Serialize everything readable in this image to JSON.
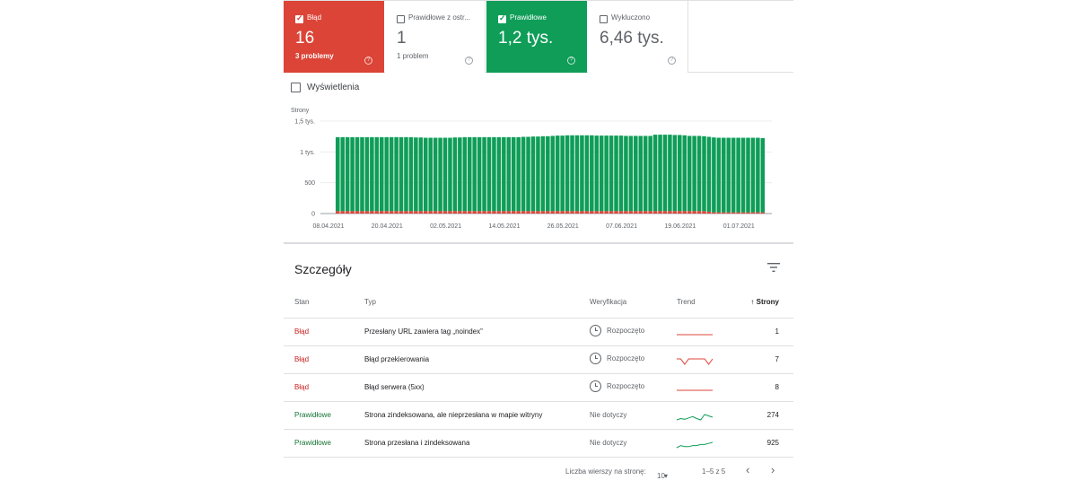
{
  "cards": [
    {
      "label": "Błąd",
      "value": "16",
      "sub": "3 problemy",
      "checked": true,
      "status": "error"
    },
    {
      "label": "Prawidłowe z ostr...",
      "value": "1",
      "sub": "1 problem",
      "checked": false,
      "status": "warning"
    },
    {
      "label": "Prawidłowe",
      "value": "1,2 tys.",
      "sub": "",
      "checked": true,
      "status": "valid"
    },
    {
      "label": "Wykluczono",
      "value": "6,46 tys.",
      "sub": "",
      "checked": false,
      "status": "excluded"
    }
  ],
  "impressions": {
    "label": "Wyświetlenia",
    "checked": false
  },
  "chart_data": {
    "type": "bar",
    "ylabel": "Strony",
    "ylim": [
      0,
      1500
    ],
    "yticks": [
      0,
      500,
      1000,
      1500
    ],
    "ytick_labels": [
      "0",
      "500",
      "1 tys.",
      "1,5 tys."
    ],
    "x_tick_labels": [
      "08.04.2021",
      "20.04.2021",
      "02.05.2021",
      "14.05.2021",
      "26.05.2021",
      "07.06.2021",
      "19.06.2021",
      "01.07.2021"
    ],
    "series": [
      {
        "name": "Błąd",
        "color": "#db4437",
        "values": [
          40,
          40,
          40,
          40,
          40,
          40,
          40,
          40,
          40,
          40,
          40,
          40,
          40,
          40,
          40,
          40,
          40,
          40,
          40,
          40,
          40,
          40,
          40,
          40,
          40,
          40,
          40,
          40,
          40,
          40,
          40,
          40,
          40,
          40,
          40,
          40,
          40,
          40,
          40,
          40,
          40,
          40,
          40,
          40,
          40,
          40,
          40,
          40,
          40,
          40,
          40,
          40,
          40,
          40,
          40,
          40,
          40,
          40,
          40,
          40,
          40,
          40,
          40,
          40,
          40,
          40,
          40,
          40,
          40,
          40,
          40,
          40,
          40,
          40,
          40,
          40,
          30,
          20,
          20,
          20,
          20,
          20,
          20,
          20,
          20,
          20,
          20,
          20
        ]
      },
      {
        "name": "Prawidłowe",
        "color": "#0f9d58",
        "values": [
          1200,
          1200,
          1200,
          1200,
          1200,
          1200,
          1200,
          1200,
          1200,
          1200,
          1200,
          1200,
          1200,
          1200,
          1200,
          1200,
          1195,
          1195,
          1190,
          1190,
          1190,
          1190,
          1190,
          1190,
          1195,
          1195,
          1200,
          1200,
          1200,
          1200,
          1200,
          1200,
          1200,
          1200,
          1200,
          1200,
          1200,
          1200,
          1205,
          1205,
          1210,
          1210,
          1215,
          1215,
          1220,
          1225,
          1225,
          1230,
          1230,
          1230,
          1230,
          1230,
          1230,
          1225,
          1225,
          1225,
          1225,
          1225,
          1225,
          1220,
          1220,
          1220,
          1220,
          1220,
          1220,
          1240,
          1240,
          1240,
          1240,
          1235,
          1235,
          1230,
          1220,
          1220,
          1220,
          1215,
          1215,
          1215,
          1210,
          1210,
          1210,
          1210,
          1210,
          1210,
          1210,
          1210,
          1210,
          1205
        ]
      }
    ]
  },
  "details": {
    "title": "Szczegóły",
    "columns": {
      "status": "Stan",
      "type": "Typ",
      "validation": "Weryfikacja",
      "trend": "Trend",
      "pages": "Strony"
    },
    "rows": [
      {
        "status": "Błąd",
        "status_kind": "error",
        "type": "Przesłany URL zawiera tag „noindex”",
        "validation": "Rozpoczęto",
        "has_clock": true,
        "pages": "1",
        "trend": [
          1,
          1,
          1,
          1,
          1,
          1,
          1,
          1,
          1,
          1
        ]
      },
      {
        "status": "Błąd",
        "status_kind": "error",
        "type": "Błąd przekierowania",
        "validation": "Rozpoczęto",
        "has_clock": true,
        "pages": "7",
        "trend": [
          7,
          7,
          6,
          7,
          7,
          7,
          7,
          7,
          6,
          7
        ]
      },
      {
        "status": "Błąd",
        "status_kind": "error",
        "type": "Błąd serwera (5xx)",
        "validation": "Rozpoczęto",
        "has_clock": true,
        "pages": "8",
        "trend": [
          8,
          8,
          8,
          8,
          8,
          8,
          8,
          8,
          8,
          8
        ]
      },
      {
        "status": "Prawidłowe",
        "status_kind": "valid",
        "type": "Strona zindeksowana, ale nieprzesłana w mapie witryny",
        "validation": "Nie dotyczy",
        "has_clock": false,
        "pages": "274",
        "trend": [
          270,
          272,
          271,
          273,
          275,
          272,
          270,
          278,
          276,
          274
        ]
      },
      {
        "status": "Prawidłowe",
        "status_kind": "valid",
        "type": "Strona przesłana i zindeksowana",
        "validation": "Nie dotyczy",
        "has_clock": false,
        "pages": "925",
        "trend": [
          920,
          922,
          921,
          921,
          922,
          922,
          923,
          923,
          924,
          925
        ]
      }
    ]
  },
  "pagination": {
    "rows_label": "Liczba wierszy na stronę:",
    "rows_value": "10",
    "range": "1–5 z 5",
    "prev": "‹",
    "next": "›"
  },
  "colors": {
    "error": "#db4437",
    "valid": "#0f9d58"
  }
}
